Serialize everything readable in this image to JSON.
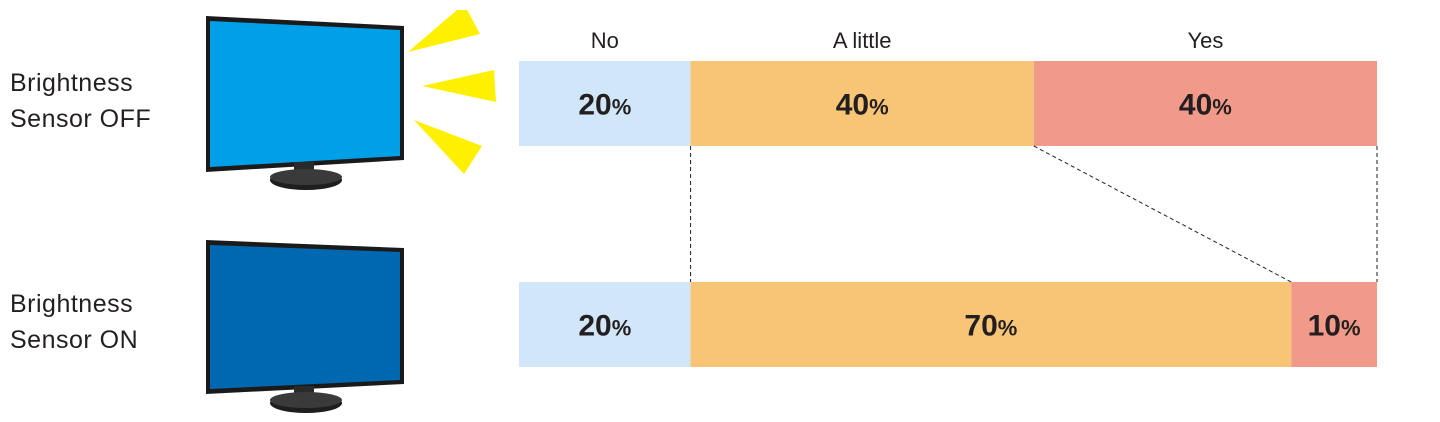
{
  "rows": [
    {
      "label_line1": "Brightness",
      "label_line2": "Sensor OFF"
    },
    {
      "label_line1": "Brightness",
      "label_line2": "Sensor ON"
    }
  ],
  "colors": {
    "screen_off": "#00a0e8",
    "screen_on": "#0068b0",
    "bezel": "#1a1a1a",
    "rays": "#fff000"
  },
  "chart_data": {
    "type": "bar",
    "orientation": "horizontal",
    "stacked": true,
    "normalized": true,
    "categories": [
      "Brightness Sensor OFF",
      "Brightness Sensor ON"
    ],
    "series": [
      {
        "name": "No",
        "values": [
          20,
          20
        ],
        "color": "#d1e6f8"
      },
      {
        "name": "A little",
        "values": [
          40,
          70
        ],
        "color": "#f7c575"
      },
      {
        "name": "Yes",
        "values": [
          40,
          10
        ],
        "color": "#f29a8a"
      }
    ],
    "value_suffix": "%",
    "xlim": [
      0,
      100
    ],
    "legend": "top",
    "grid": false
  }
}
